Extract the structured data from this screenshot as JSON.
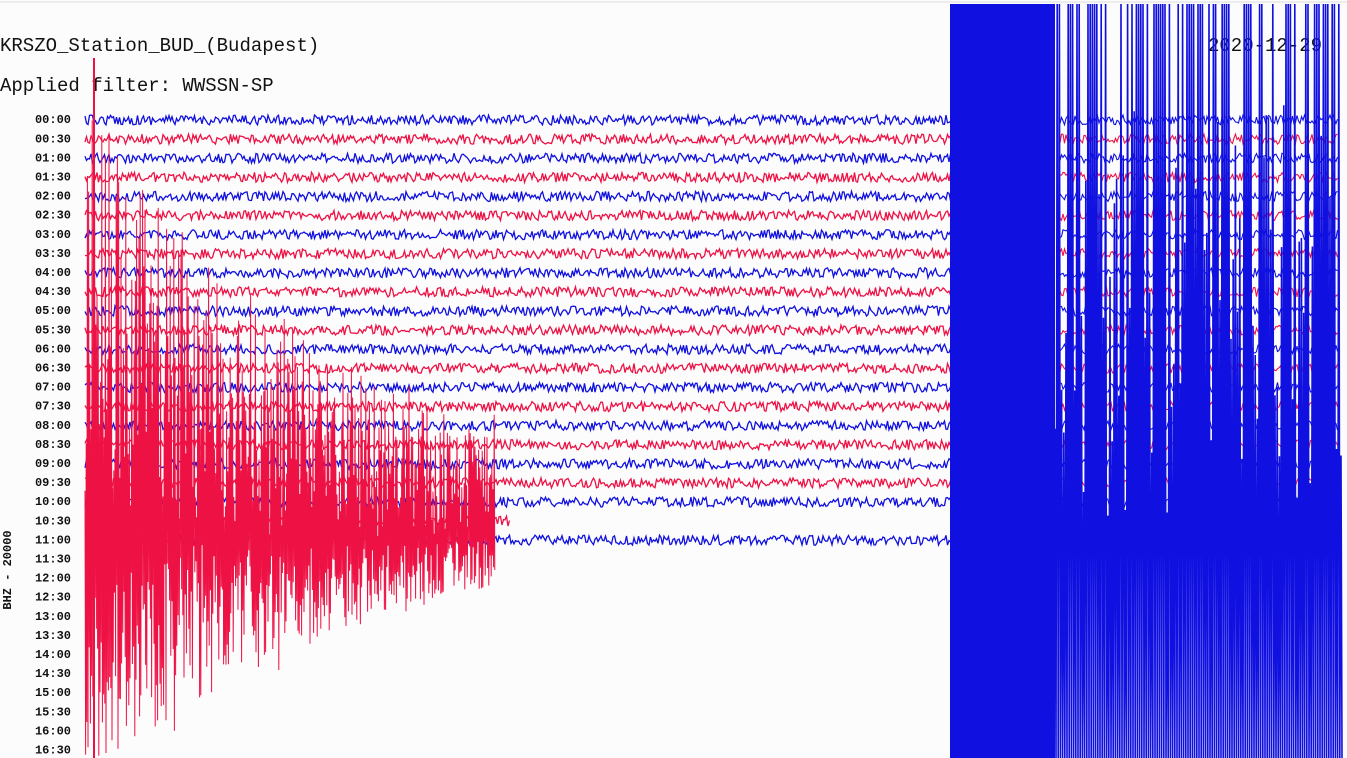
{
  "header": {
    "title": "KRSZO_Station_BUD_(Budapest)",
    "filter": "Applied filter: WWSSN-SP",
    "date": "2020-12-29"
  },
  "axis_label": "BHZ - 20000",
  "time_labels": [
    "00:00",
    "00:30",
    "01:00",
    "01:30",
    "02:00",
    "02:30",
    "03:00",
    "03:30",
    "04:00",
    "04:30",
    "05:00",
    "05:30",
    "06:00",
    "06:30",
    "07:00",
    "07:30",
    "08:00",
    "08:30",
    "09:00",
    "09:30",
    "10:00",
    "10:30",
    "11:00",
    "11:30",
    "12:00",
    "12:30",
    "13:00",
    "13:30",
    "14:00",
    "14:30",
    "15:00",
    "15:30",
    "16:00",
    "16:30"
  ]
}
